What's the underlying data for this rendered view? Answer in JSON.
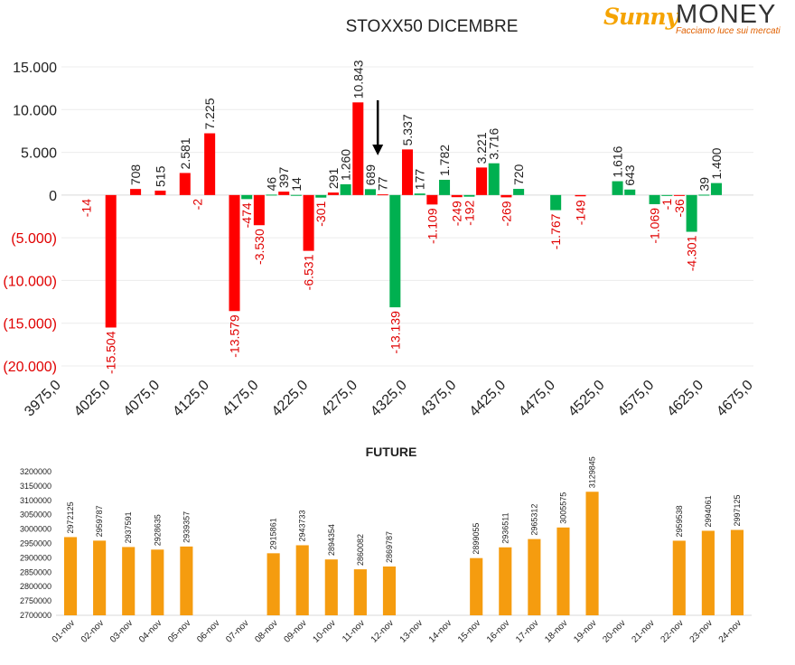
{
  "brand": {
    "name_left": "Sunny",
    "name_right": "MONEY",
    "tagline": "Facciamo luce sui mercati",
    "accent": "#f5a300"
  },
  "chart_data": [
    {
      "type": "bar",
      "title": "STOXX50 DICEMBRE",
      "x": [
        4000,
        4012.5,
        4025,
        4037.5,
        4050,
        4062.5,
        4075,
        4087.5,
        4100,
        4112.5,
        4125,
        4137.5,
        4150,
        4162.5,
        4175,
        4187.5,
        4200,
        4212.5,
        4225,
        4237.5,
        4250,
        4262.5,
        4275,
        4287.5,
        4300,
        4312.5,
        4325,
        4337.5,
        4350,
        4362.5,
        4375,
        4387.5,
        4400,
        4412.5,
        4425,
        4437.5,
        4450,
        4462.5,
        4475,
        4487.5,
        4500,
        4512.5,
        4525,
        4537.5,
        4550,
        4562.5,
        4575,
        4587.5,
        4600,
        4612.5,
        4625,
        4637.5,
        4650
      ],
      "values": [
        -14,
        null,
        -15504,
        null,
        708,
        null,
        515,
        null,
        2581,
        -2,
        7225,
        null,
        -13579,
        -474,
        -3530,
        46,
        397,
        14,
        -6531,
        -301,
        291,
        1260,
        10843,
        689,
        77,
        -13139,
        5337,
        177,
        -1109,
        1782,
        -249,
        -192,
        3221,
        3716,
        -269,
        720,
        null,
        null,
        -1767,
        null,
        -149,
        null,
        null,
        1616,
        643,
        null,
        -1069,
        -1,
        -36,
        -4301,
        39,
        1400,
        null
      ],
      "value_labels": [
        "-14",
        null,
        "-15.504",
        null,
        "708",
        null,
        "515",
        null,
        "2.581",
        "-2",
        "7.225",
        null,
        "-13.579",
        "-474",
        "-3.530",
        "46",
        "397",
        "14",
        "-6.531",
        "-301",
        "291",
        "1.260",
        "10.843",
        "689",
        "77",
        "-13.139",
        "5.337",
        "177",
        "-1.109",
        "1.782",
        "-249",
        "-192",
        "3.221",
        "3.716",
        "-269",
        "720",
        null,
        null,
        "-1.767",
        null,
        "-149",
        null,
        null,
        "1.616",
        "643",
        null,
        "-1.069",
        "-1",
        "-36",
        "-4.301",
        "39",
        "1.400",
        null
      ],
      "colors": [
        null,
        null,
        "#ff0000",
        null,
        "#ff0000",
        null,
        "#ff0000",
        null,
        "#ff0000",
        null,
        "#ff0000",
        null,
        "#ff0000",
        "#00b050",
        "#ff0000",
        "#00b050",
        "#ff0000",
        "#00b050",
        "#ff0000",
        "#00b050",
        "#ff0000",
        "#00b050",
        "#ff0000",
        "#00b050",
        "#ff0000",
        "#00b050",
        "#ff0000",
        "#00b050",
        "#ff0000",
        "#00b050",
        "#ff0000",
        "#00b050",
        "#ff0000",
        "#00b050",
        "#ff0000",
        "#00b050",
        null,
        null,
        "#00b050",
        null,
        "#ff0000",
        null,
        null,
        "#00b050",
        "#00b050",
        null,
        "#00b050",
        "#00b050",
        "#ff0000",
        "#00b050",
        "#00b050",
        "#00b050",
        null
      ],
      "xticks": [
        3975,
        4025,
        4075,
        4125,
        4175,
        4225,
        4275,
        4325,
        4375,
        4425,
        4475,
        4525,
        4575,
        4625,
        4675
      ],
      "xtick_labels": [
        "3975,0",
        "4025,0",
        "4075,0",
        "4125,0",
        "4175,0",
        "4225,0",
        "4275,0",
        "4325,0",
        "4375,0",
        "4425,0",
        "4475,0",
        "4525,0",
        "4575,0",
        "4625,0",
        "4675,0"
      ],
      "xlim": [
        3975,
        4675
      ],
      "yticks": [
        15000,
        10000,
        5000,
        0,
        -5000,
        -10000,
        -15000,
        -20000
      ],
      "ytick_labels": [
        "15.000",
        "10.000",
        "5.000",
        "0",
        "(5.000)",
        "(10.000)",
        "(15.000)",
        "(20.000)"
      ],
      "ylim": [
        -20000,
        15000
      ],
      "positive_color": "#00b050",
      "negative_color": "#ff0000",
      "arrow_at": 4295,
      "grid": true
    },
    {
      "type": "bar",
      "title": "FUTURE",
      "categories": [
        "01-nov",
        "02-nov",
        "03-nov",
        "04-nov",
        "05-nov",
        "06-nov",
        "07-nov",
        "08-nov",
        "09-nov",
        "10-nov",
        "11-nov",
        "12-nov",
        "13-nov",
        "14-nov",
        "15-nov",
        "16-nov",
        "17-nov",
        "18-nov",
        "19-nov",
        "20-nov",
        "21-nov",
        "22-nov",
        "23-nov",
        "24-nov"
      ],
      "values": [
        2972125,
        2959787,
        2937591,
        2928635,
        2939357,
        null,
        null,
        2915861,
        2943733,
        2894354,
        2860082,
        2869787,
        null,
        null,
        2899055,
        2936511,
        2965312,
        3005575,
        3129845,
        null,
        null,
        2959538,
        2994061,
        2997125
      ],
      "yticks": [
        3200000,
        3150000,
        3100000,
        3050000,
        3000000,
        2950000,
        2900000,
        2850000,
        2800000,
        2750000,
        2700000
      ],
      "ylim": [
        2700000,
        3225000
      ],
      "bar_color": "#f59c0f",
      "grid": false
    }
  ]
}
